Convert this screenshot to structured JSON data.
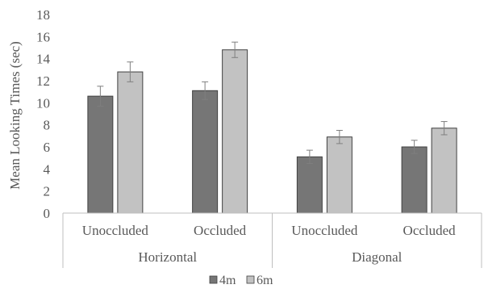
{
  "chart_data": {
    "type": "bar",
    "title": "",
    "ylabel": "Mean Looking Times (sec)",
    "xlabel": "",
    "ylim": [
      0,
      18
    ],
    "yticks": [
      0,
      2,
      4,
      6,
      8,
      10,
      12,
      14,
      16,
      18
    ],
    "grid": false,
    "legend_position": "bottom",
    "groups": [
      {
        "label": "Horizontal",
        "categories": [
          "Unoccluded",
          "Occluded"
        ]
      },
      {
        "label": "Diagonal",
        "categories": [
          "Unoccluded",
          "Occluded"
        ]
      }
    ],
    "series": [
      {
        "name": "4m",
        "color": "#767676",
        "values": [
          10.6,
          11.1,
          5.1,
          6.0
        ],
        "errors": [
          0.9,
          0.8,
          0.6,
          0.6
        ]
      },
      {
        "name": "6m",
        "color": "#c2c2c2",
        "values": [
          12.8,
          14.8,
          6.9,
          7.7
        ],
        "errors": [
          0.9,
          0.7,
          0.6,
          0.6
        ]
      }
    ]
  }
}
